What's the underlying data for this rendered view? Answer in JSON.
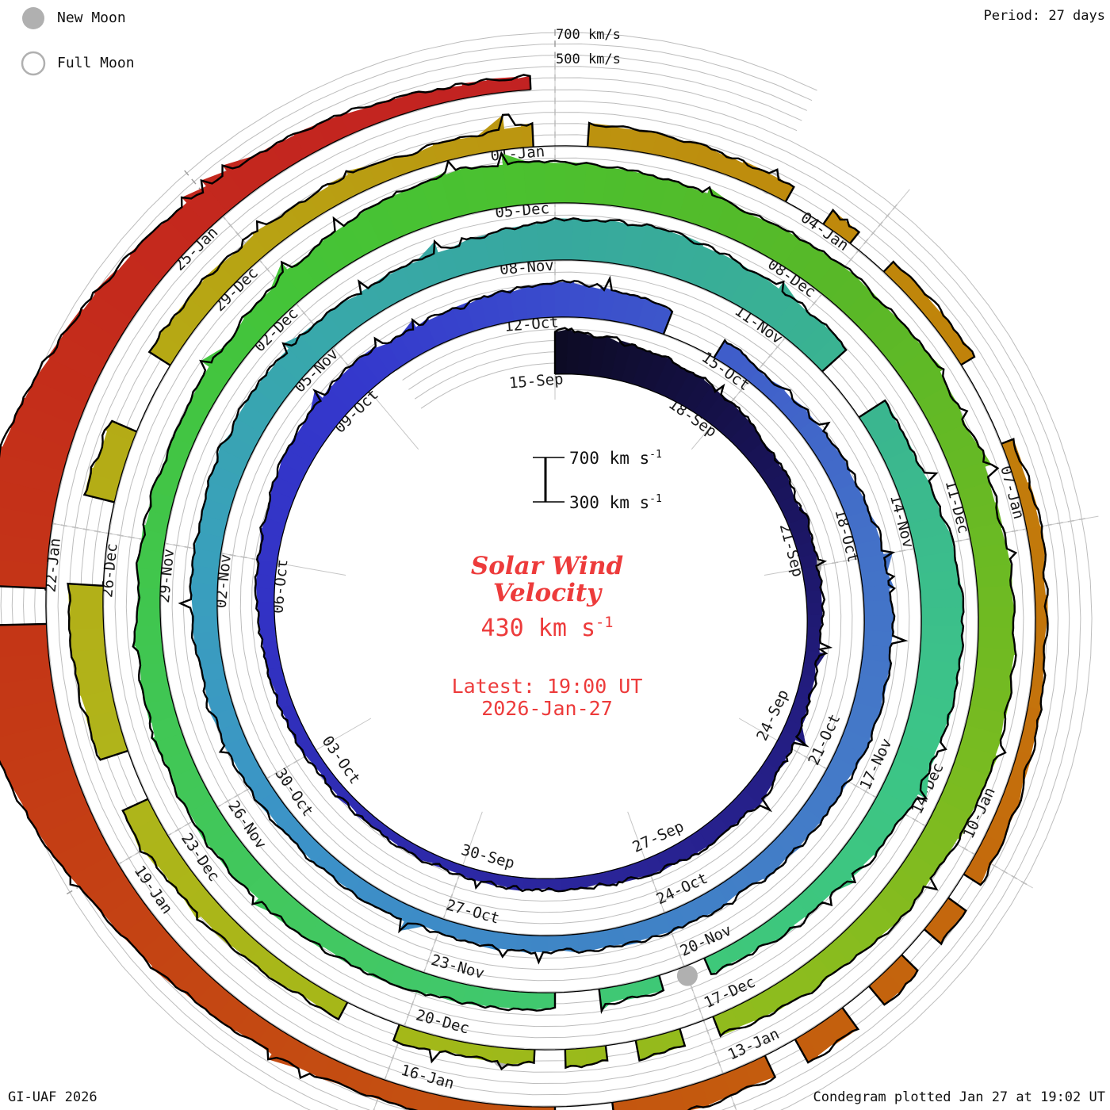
{
  "legend": {
    "new_moon": "New Moon",
    "full_moon": "Full Moon"
  },
  "header": {
    "period_label": "Period: 27 days"
  },
  "outer_axis": {
    "v700": "700 km/s",
    "v500": "500 km/s"
  },
  "scale_bar": {
    "top_value": "700",
    "top_unit": " km s",
    "top_exp": "-1",
    "bottom_value": "300",
    "bottom_unit": " km s",
    "bottom_exp": "-1"
  },
  "center": {
    "title_line1": "Solar Wind",
    "title_line2": "Velocity",
    "value": "430",
    "value_unit": " km s",
    "value_exp": "-1",
    "latest_line": "Latest: 19:00 UT",
    "latest_date": "2026-Jan-27",
    "text_color": "#ed3b3b"
  },
  "footer": {
    "left": "GI-UAF 2026",
    "right": "Condegram plotted Jan 27 at 19:02 UT"
  },
  "chart_data": {
    "type": "area",
    "layout": "polar-spiral-condegram, clockwise from top, one turn = 27 days, grid on",
    "title": "Solar Wind Velocity",
    "start_label": "15-Sep",
    "end_label": "27-Jan 19:00 UT",
    "period_days": 27,
    "velocity_baseline_km_s": 300,
    "gridline_values_km_s": [
      400,
      500,
      600,
      700,
      800
    ],
    "label_interval_days": 3,
    "date_labels": [
      "15-Sep",
      "18-Sep",
      "21-Sep",
      "24-Sep",
      "27-Sep",
      "30-Sep",
      "03-Oct",
      "06-Oct",
      "09-Oct",
      "12-Oct",
      "15-Oct",
      "18-Oct",
      "21-Oct",
      "24-Oct",
      "27-Oct",
      "30-Oct",
      "02-Nov",
      "05-Nov",
      "08-Nov",
      "11-Nov",
      "14-Nov",
      "17-Nov",
      "20-Nov",
      "23-Nov",
      "26-Nov",
      "29-Nov",
      "02-Dec",
      "05-Dec",
      "08-Dec",
      "11-Dec",
      "14-Dec",
      "17-Dec",
      "20-Dec",
      "23-Dec",
      "26-Dec",
      "29-Dec",
      "01-Jan",
      "04-Jan",
      "07-Jan",
      "10-Jan",
      "13-Jan",
      "16-Jan",
      "19-Jan",
      "22-Jan",
      "25-Jan"
    ],
    "daily_velocity_km_s": [
      700,
      640,
      600,
      560,
      510,
      470,
      450,
      430,
      420,
      440,
      480,
      460,
      430,
      410,
      400,
      390,
      380,
      390,
      400,
      420,
      440,
      470,
      520,
      560,
      580,
      540,
      550,
      620,
      560,
      500,
      450,
      470,
      500,
      540,
      560,
      540,
      520,
      500,
      480,
      470,
      450,
      440,
      430,
      440,
      460,
      480,
      500,
      520,
      540,
      560,
      580,
      560,
      540,
      580,
      650,
      680,
      650,
      610,
      570,
      560,
      640,
      660,
      640,
      600,
      520,
      470,
      440,
      430,
      450,
      470,
      500,
      530,
      560,
      540,
      520,
      500,
      490,
      500,
      560,
      630,
      700,
      670,
      620,
      580,
      600,
      610,
      590,
      600,
      620,
      640,
      610,
      570,
      520,
      470,
      450,
      430,
      440,
      460,
      490,
      530,
      570,
      600,
      580,
      550,
      520,
      500,
      480,
      460,
      520,
      480,
      450,
      420,
      430,
      420,
      420,
      390,
      420,
      470,
      510,
      540,
      510,
      470,
      450,
      470,
      520,
      580,
      700,
      900,
      1000,
      950,
      820,
      680,
      580,
      520,
      430
    ],
    "end_day_fraction": 134.8,
    "data_gap_day_ranges": [
      [
        28.6,
        29.4
      ],
      [
        57.6,
        58.3
      ],
      [
        65.8,
        66.3
      ],
      [
        67.0,
        67.5
      ],
      [
        92.9,
        93.25
      ],
      [
        93.7,
        94.0
      ],
      [
        94.4,
        94.7
      ],
      [
        96.1,
        96.6
      ],
      [
        99.4,
        99.9
      ],
      [
        101.5,
        102.3
      ],
      [
        103.0,
        103.7
      ],
      [
        107.8,
        108.3
      ],
      [
        110.2,
        110.6
      ],
      [
        110.9,
        111.3
      ],
      [
        112.4,
        113.2
      ],
      [
        117.2,
        117.45
      ],
      [
        117.8,
        118.1
      ],
      [
        118.5,
        118.8
      ],
      [
        119.3,
        119.6
      ],
      [
        121.0,
        121.5
      ],
      [
        128.2,
        128.45
      ]
    ],
    "moons": {
      "new_moon_days": [
        6,
        36,
        66,
        95,
        125
      ],
      "full_moon_days": [
        21,
        51,
        80,
        110
      ],
      "moon_color": "#b0b0b0"
    },
    "color_stops": [
      {
        "day": 0,
        "color": "#0d0b24"
      },
      {
        "day": 4,
        "color": "#181356"
      },
      {
        "day": 8,
        "color": "#221c7e"
      },
      {
        "day": 12,
        "color": "#292394"
      },
      {
        "day": 16,
        "color": "#2d2aac"
      },
      {
        "day": 20,
        "color": "#3232c4"
      },
      {
        "day": 24,
        "color": "#3438cc"
      },
      {
        "day": 27,
        "color": "#3a4ccc"
      },
      {
        "day": 30,
        "color": "#4060ca"
      },
      {
        "day": 33,
        "color": "#4372c8"
      },
      {
        "day": 36,
        "color": "#447ac8"
      },
      {
        "day": 40,
        "color": "#3f84c6"
      },
      {
        "day": 44,
        "color": "#3c92c8"
      },
      {
        "day": 48,
        "color": "#39a0bc"
      },
      {
        "day": 51,
        "color": "#38a8aa"
      },
      {
        "day": 54,
        "color": "#37a89e"
      },
      {
        "day": 58,
        "color": "#3ab490"
      },
      {
        "day": 62,
        "color": "#3cc488"
      },
      {
        "day": 66,
        "color": "#3ec878"
      },
      {
        "day": 70,
        "color": "#42c862"
      },
      {
        "day": 74,
        "color": "#40c650"
      },
      {
        "day": 78,
        "color": "#44c438"
      },
      {
        "day": 81,
        "color": "#4cc02e"
      },
      {
        "day": 84,
        "color": "#58b828"
      },
      {
        "day": 88,
        "color": "#70ba22"
      },
      {
        "day": 92,
        "color": "#8cbc1e"
      },
      {
        "day": 96,
        "color": "#a4b818"
      },
      {
        "day": 100,
        "color": "#b0b41a"
      },
      {
        "day": 104,
        "color": "#b6a814"
      },
      {
        "day": 108,
        "color": "#bc9410"
      },
      {
        "day": 112,
        "color": "#c0840a"
      },
      {
        "day": 116,
        "color": "#c4700c"
      },
      {
        "day": 120,
        "color": "#c45a0e"
      },
      {
        "day": 124,
        "color": "#c44a12"
      },
      {
        "day": 128,
        "color": "#c43616"
      },
      {
        "day": 131,
        "color": "#c42a1c"
      },
      {
        "day": 134.8,
        "color": "#c22222"
      }
    ]
  }
}
